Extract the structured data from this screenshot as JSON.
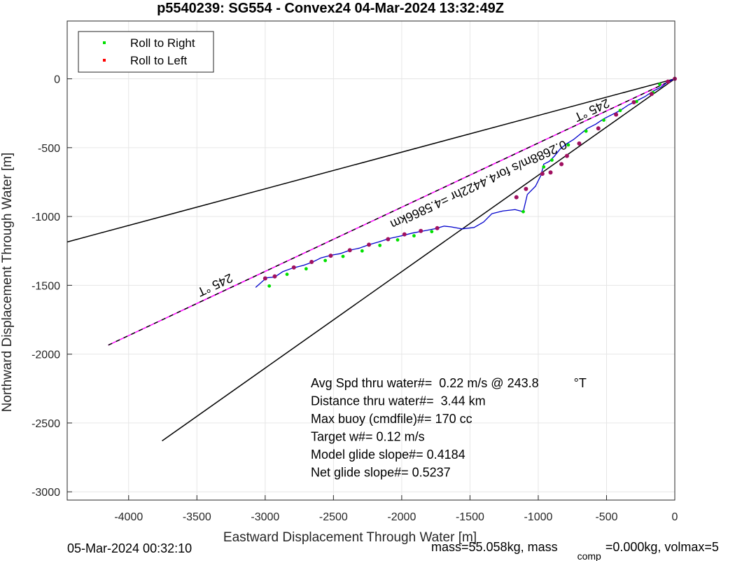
{
  "chart_data": {
    "type": "line",
    "title": "p5540239: SG554 - Convex24 04-Mar-2024 13:32:49Z",
    "xlabel": "Eastward Displacement Through Water [m]",
    "ylabel": "Northward Displacement Through Water [m]",
    "xlim": [
      -4450,
      0
    ],
    "ylim": [
      -3060,
      420
    ],
    "xticks": [
      -4000,
      -3500,
      -3000,
      -2500,
      -2000,
      -1500,
      -1000,
      -500,
      0
    ],
    "yticks": [
      0,
      -500,
      -1000,
      -1500,
      -2000,
      -2500,
      -3000
    ],
    "grid": true,
    "legend": {
      "placement": "top-left",
      "entries": [
        {
          "name": "Roll to Right",
          "color": "#00e000"
        },
        {
          "name": "Roll to Left",
          "color": "#ff0000"
        }
      ]
    },
    "reference_lines": [
      {
        "color": "#000000",
        "points": [
          [
            0,
            0
          ],
          [
            -4450,
            -1185
          ]
        ]
      },
      {
        "color": "#000000",
        "points": [
          [
            0,
            0
          ],
          [
            -3755,
            -2630
          ]
        ]
      },
      {
        "color": "#ff00ff",
        "dashed_overlay": "#000000",
        "points": [
          [
            0,
            0
          ],
          [
            -4150,
            -1935
          ]
        ]
      }
    ],
    "track": {
      "color": "#0000cc",
      "points": [
        [
          -3070,
          -1515
        ],
        [
          -2990,
          -1445
        ],
        [
          -2930,
          -1440
        ],
        [
          -2870,
          -1400
        ],
        [
          -2800,
          -1375
        ],
        [
          -2720,
          -1355
        ],
        [
          -2650,
          -1330
        ],
        [
          -2590,
          -1300
        ],
        [
          -2510,
          -1280
        ],
        [
          -2450,
          -1270
        ],
        [
          -2380,
          -1245
        ],
        [
          -2310,
          -1230
        ],
        [
          -2240,
          -1205
        ],
        [
          -2170,
          -1185
        ],
        [
          -2090,
          -1160
        ],
        [
          -2000,
          -1140
        ],
        [
          -1920,
          -1120
        ],
        [
          -1840,
          -1105
        ],
        [
          -1760,
          -1090
        ],
        [
          -1690,
          -1070
        ],
        [
          -1640,
          -1075
        ],
        [
          -1560,
          -1090
        ],
        [
          -1470,
          -1080
        ],
        [
          -1400,
          -1040
        ],
        [
          -1340,
          -980
        ],
        [
          -1260,
          -960
        ],
        [
          -1170,
          -950
        ],
        [
          -1110,
          -965
        ],
        [
          -1080,
          -840
        ],
        [
          -1020,
          -780
        ],
        [
          -980,
          -700
        ],
        [
          -960,
          -620
        ],
        [
          -920,
          -600
        ],
        [
          -880,
          -560
        ],
        [
          -840,
          -510
        ],
        [
          -790,
          -470
        ],
        [
          -740,
          -440
        ],
        [
          -690,
          -400
        ],
        [
          -640,
          -360
        ],
        [
          -580,
          -330
        ],
        [
          -520,
          -290
        ],
        [
          -460,
          -260
        ],
        [
          -400,
          -230
        ],
        [
          -340,
          -190
        ],
        [
          -280,
          -160
        ],
        [
          -220,
          -130
        ],
        [
          -160,
          -90
        ],
        [
          -100,
          -60
        ],
        [
          -50,
          -20
        ],
        [
          0,
          0
        ]
      ]
    },
    "roll_right_points": [
      [
        -2970,
        -1505
      ],
      [
        -2840,
        -1420
      ],
      [
        -2700,
        -1380
      ],
      [
        -2560,
        -1320
      ],
      [
        -2430,
        -1290
      ],
      [
        -2290,
        -1250
      ],
      [
        -2160,
        -1210
      ],
      [
        -2030,
        -1170
      ],
      [
        -1910,
        -1140
      ],
      [
        -1780,
        -1110
      ],
      [
        -1110,
        -965
      ],
      [
        -960,
        -640
      ],
      [
        -900,
        -590
      ],
      [
        -780,
        -480
      ],
      [
        -650,
        -380
      ],
      [
        -520,
        -300
      ],
      [
        -400,
        -230
      ],
      [
        -280,
        -165
      ],
      [
        -160,
        -100
      ],
      [
        -110,
        -40
      ]
    ],
    "roll_left_points": [
      [
        -3000,
        -1450
      ],
      [
        -2930,
        -1435
      ],
      [
        -2790,
        -1370
      ],
      [
        -2660,
        -1330
      ],
      [
        -2520,
        -1285
      ],
      [
        -2380,
        -1245
      ],
      [
        -2240,
        -1205
      ],
      [
        -2100,
        -1165
      ],
      [
        -1980,
        -1130
      ],
      [
        -1860,
        -1105
      ],
      [
        -1740,
        -1085
      ],
      [
        -1160,
        -860
      ],
      [
        -1090,
        -800
      ],
      [
        -970,
        -690
      ],
      [
        -910,
        -680
      ],
      [
        -830,
        -620
      ],
      [
        -790,
        -560
      ],
      [
        -700,
        -470
      ],
      [
        -560,
        -360
      ],
      [
        -430,
        -260
      ],
      [
        -300,
        -170
      ],
      [
        -170,
        -110
      ],
      [
        -50,
        -20
      ],
      [
        0,
        0
      ]
    ],
    "annotations": [
      {
        "text": "245 °T",
        "x": -3380,
        "y": -1470,
        "rotation": 155
      },
      {
        "text": "245 °T",
        "x": -620,
        "y": -200,
        "rotation": 155
      },
      {
        "text": "0.2688m/s for4.4422hr =4.5866km",
        "x": -1450,
        "y": -740,
        "rotation": 155
      }
    ],
    "info_lines": [
      "Avg Spd thru water#=  0.22 m/s @ 243.8          °T",
      "Distance thru water#=  3.44 km",
      "Max buoy (cmdfile)#= 170 cc",
      "Target w#= 0.12 m/s",
      "Model glide slope#= 0.4184",
      "Net glide slope#= 0.5237"
    ]
  },
  "footer": {
    "timestamp": "05-Mar-2024 00:32:10",
    "mass_text": "mass=55.058kg, mass",
    "mass_subscript": "comp",
    "mass_tail": "=0.000kg, volmax=5"
  }
}
